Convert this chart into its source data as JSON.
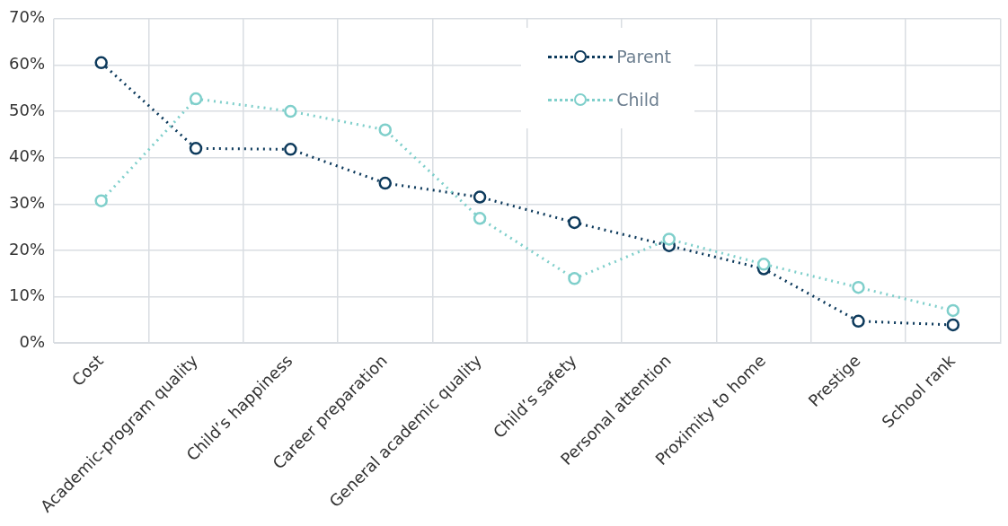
{
  "chart_data": {
    "type": "line",
    "categories": [
      "Cost",
      "Academic-program quality",
      "Child’s happiness",
      "Career preparation",
      "General academic quality",
      "Child’s safety",
      "Personal attention",
      "Proximity to home",
      "Prestige",
      "School rank"
    ],
    "series": [
      {
        "name": "Parent",
        "color": "#0d3a5c",
        "values": [
          60.5,
          42,
          41.8,
          34.5,
          31.5,
          26,
          21,
          16,
          4.7,
          3.9
        ]
      },
      {
        "name": "Child",
        "color": "#7fcfcb",
        "values": [
          30.7,
          52.7,
          50,
          46,
          26.9,
          13.9,
          22.4,
          17,
          12,
          7
        ]
      }
    ],
    "ylim": [
      0,
      70
    ],
    "yticks": [
      {
        "value": 0,
        "label": "0%"
      },
      {
        "value": 10,
        "label": "10%"
      },
      {
        "value": 20,
        "label": "20%"
      },
      {
        "value": 30,
        "label": "30%"
      },
      {
        "value": 40,
        "label": "40%"
      },
      {
        "value": 50,
        "label": "50%"
      },
      {
        "value": 60,
        "label": "60%"
      },
      {
        "value": 70,
        "label": "70%"
      }
    ],
    "grid": true,
    "legend": "top",
    "marker": "circle",
    "line_style": "dotted"
  }
}
